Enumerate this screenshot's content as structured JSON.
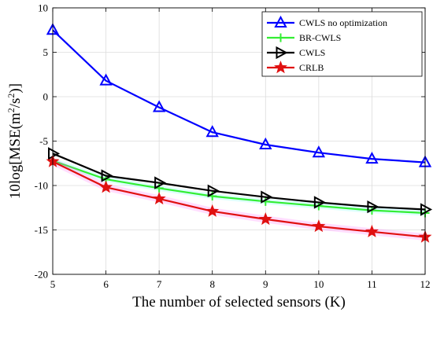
{
  "chart_data": {
    "type": "line",
    "x": [
      5,
      6,
      7,
      8,
      9,
      10,
      11,
      12
    ],
    "xlabel": "The number of selected sensors (K)",
    "ylabel_parts": [
      "10log[MSE(m",
      "2",
      "/s",
      "2",
      ")]"
    ],
    "xlim": [
      5,
      12
    ],
    "ylim": [
      -20,
      10
    ],
    "xticks": [
      "5",
      "6",
      "7",
      "8",
      "9",
      "10",
      "11",
      "12"
    ],
    "yticks": [
      "-20",
      "-15",
      "-10",
      "-5",
      "0",
      "5",
      "10"
    ],
    "grid": true,
    "legend_position": "top-right",
    "series": [
      {
        "name": "CWLS no optimization",
        "values": [
          7.5,
          1.8,
          -1.2,
          -4.0,
          -5.4,
          -6.3,
          -7.0,
          -7.4
        ],
        "color": "#0000ff",
        "marker": "triangle-up"
      },
      {
        "name": "BR-CWLS",
        "values": [
          -7.2,
          -9.3,
          -10.3,
          -11.2,
          -11.8,
          -12.3,
          -12.8,
          -13.1
        ],
        "color": "#33ee33",
        "marker": "plus"
      },
      {
        "name": "CWLS",
        "values": [
          -6.4,
          -8.9,
          -9.7,
          -10.6,
          -11.3,
          -11.9,
          -12.4,
          -12.7
        ],
        "color": "#000000",
        "marker": "triangle-right"
      },
      {
        "name": "CRLB",
        "values": [
          -7.3,
          -10.2,
          -11.5,
          -12.9,
          -13.8,
          -14.6,
          -15.2,
          -15.8
        ],
        "color": "#e01010",
        "marker": "star"
      }
    ]
  }
}
